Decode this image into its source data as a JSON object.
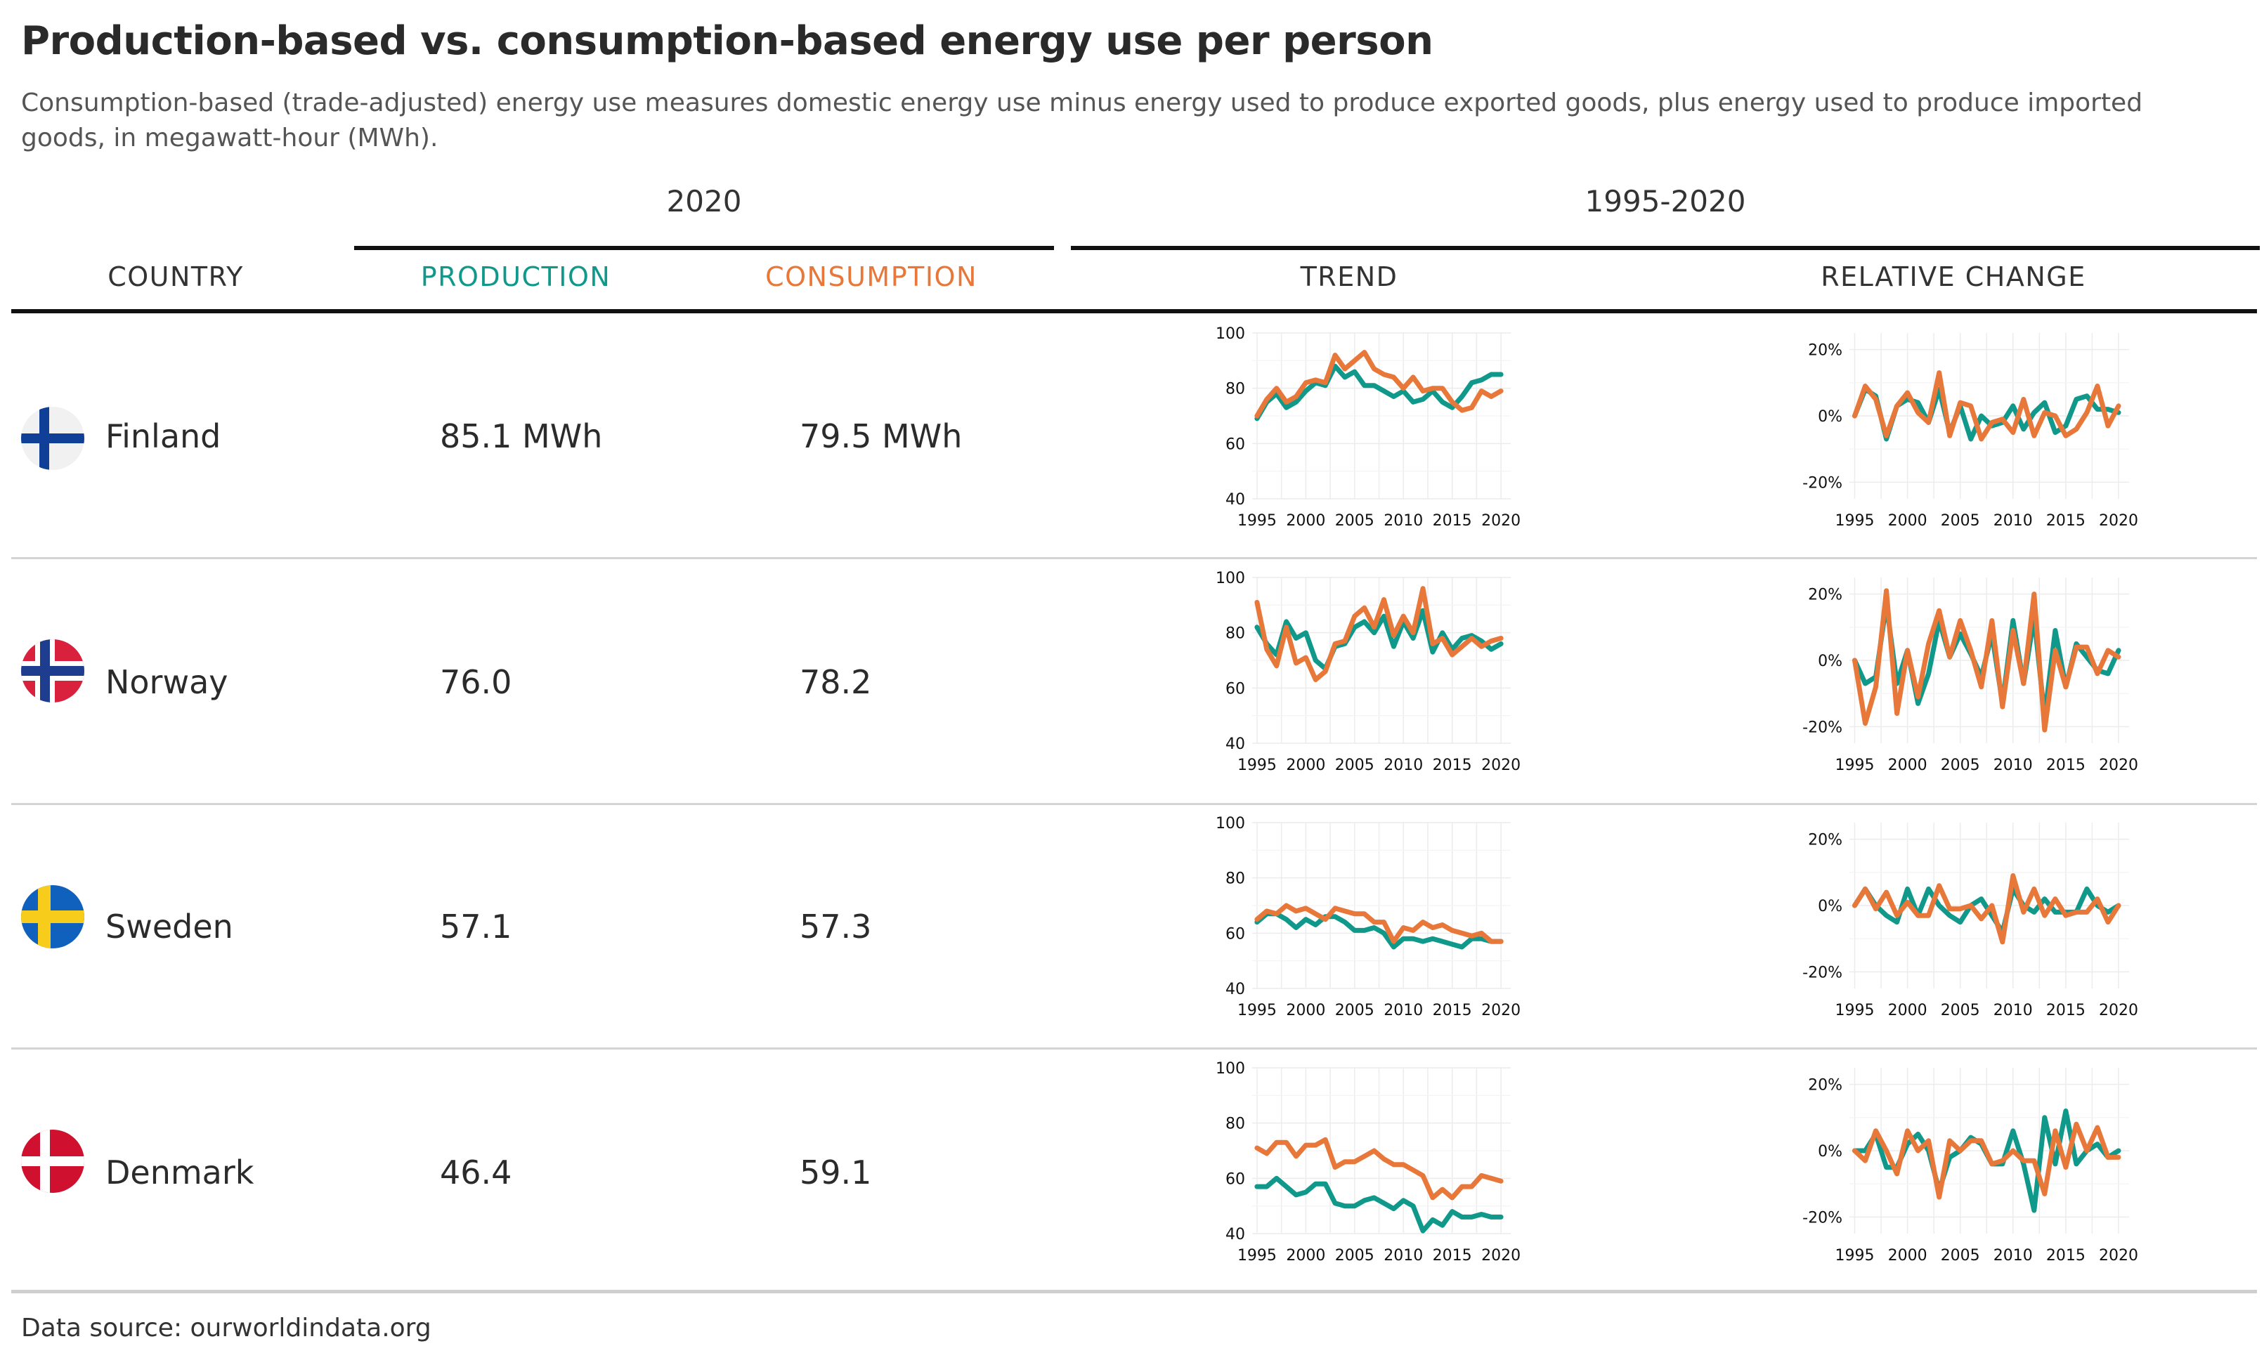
{
  "title": "Production-based vs. consumption-based energy use per person",
  "subtitle": "Consumption-based (trade-adjusted) energy use measures domestic energy use minus energy used to produce exported goods, plus energy used to produce imported goods, in megawatt-hour (MWh).",
  "spanners": {
    "left": "2020",
    "right": "1995-2020"
  },
  "columns": {
    "country": "COUNTRY",
    "production": "PRODUCTION",
    "consumption": "CONSUMPTION",
    "trend": "TREND",
    "relative_change": "RELATIVE CHANGE"
  },
  "colors": {
    "production": "#10998a",
    "consumption": "#e8773a",
    "rule": "#111111",
    "separator": "#d4d4d4"
  },
  "rows": [
    {
      "country": "Finland",
      "flag_icon": "finland-flag-icon",
      "production": "85.1 MWh",
      "consumption": "79.5 MWh"
    },
    {
      "country": "Norway",
      "flag_icon": "norway-flag-icon",
      "production": "76.0",
      "consumption": "78.2"
    },
    {
      "country": "Sweden",
      "flag_icon": "sweden-flag-icon",
      "production": "57.1",
      "consumption": "57.3"
    },
    {
      "country": "Denmark",
      "flag_icon": "denmark-flag-icon",
      "production": "46.4",
      "consumption": "59.1"
    }
  ],
  "source": "Data source: ourworldindata.org",
  "chart_data": {
    "type": "line",
    "x": [
      1995,
      1996,
      1997,
      1998,
      1999,
      2000,
      2001,
      2002,
      2003,
      2004,
      2005,
      2006,
      2007,
      2008,
      2009,
      2010,
      2011,
      2012,
      2013,
      2014,
      2015,
      2016,
      2017,
      2018,
      2019,
      2020
    ],
    "trend_axis": {
      "ylim": [
        40,
        100
      ],
      "yticks": [
        40,
        60,
        80,
        100
      ],
      "xticks": [
        1995,
        2000,
        2005,
        2010,
        2015,
        2020
      ],
      "xlim": [
        1994.5,
        2021
      ]
    },
    "change_axis": {
      "ylim": [
        -25,
        25
      ],
      "yticks": [
        -20,
        0,
        20
      ],
      "ytick_labels": [
        "-20%",
        "0%",
        "20%"
      ],
      "xticks": [
        1995,
        2000,
        2005,
        2010,
        2015,
        2020
      ],
      "xlim": [
        1994.5,
        2021
      ]
    },
    "countries": [
      {
        "country": "Finland",
        "trend": {
          "production": [
            69,
            75,
            78,
            73,
            75,
            79,
            82,
            81,
            88,
            84,
            86,
            81,
            81,
            79,
            77,
            79,
            75,
            76,
            79,
            75,
            73,
            77,
            82,
            83,
            85,
            85
          ],
          "consumption": [
            70,
            76,
            80,
            75,
            77,
            82,
            83,
            82,
            92,
            87,
            90,
            93,
            87,
            85,
            84,
            80,
            84,
            79,
            80,
            80,
            75,
            72,
            73,
            79,
            77,
            79
          ]
        },
        "relative_change": {
          "production": [
            0,
            8,
            6,
            -7,
            3,
            5,
            4,
            -2,
            8,
            -5,
            3,
            -7,
            0,
            -3,
            -2,
            3,
            -4,
            1,
            4,
            -5,
            -3,
            5,
            6,
            2,
            2,
            1
          ],
          "consumption": [
            0,
            9,
            5,
            -6,
            3,
            7,
            1,
            -2,
            13,
            -6,
            4,
            3,
            -7,
            -2,
            -1,
            -5,
            5,
            -6,
            1,
            0,
            -6,
            -4,
            1,
            9,
            -3,
            3
          ]
        }
      },
      {
        "country": "Norway",
        "trend": {
          "production": [
            82,
            76,
            72,
            84,
            78,
            80,
            70,
            67,
            75,
            76,
            82,
            84,
            80,
            86,
            75,
            84,
            78,
            88,
            73,
            80,
            74,
            78,
            79,
            77,
            74,
            76
          ],
          "consumption": [
            91,
            74,
            68,
            82,
            69,
            71,
            63,
            66,
            76,
            77,
            86,
            89,
            82,
            92,
            79,
            86,
            80,
            96,
            76,
            78,
            72,
            75,
            78,
            75,
            77,
            78
          ]
        },
        "relative_change": {
          "production": [
            0,
            -7,
            -5,
            17,
            -7,
            3,
            -13,
            -4,
            12,
            1,
            8,
            2,
            -5,
            8,
            -13,
            12,
            -7,
            13,
            -17,
            9,
            -8,
            5,
            1,
            -3,
            -4,
            3
          ],
          "consumption": [
            0,
            -19,
            -8,
            21,
            -16,
            3,
            -11,
            5,
            15,
            1,
            12,
            3,
            -8,
            12,
            -14,
            9,
            -7,
            20,
            -21,
            3,
            -8,
            4,
            4,
            -4,
            3,
            1
          ]
        }
      },
      {
        "country": "Sweden",
        "trend": {
          "production": [
            64,
            67,
            67,
            65,
            62,
            65,
            63,
            66,
            66,
            64,
            61,
            61,
            62,
            60,
            55,
            58,
            58,
            57,
            58,
            57,
            56,
            55,
            58,
            58,
            57,
            57
          ],
          "consumption": [
            65,
            68,
            67,
            70,
            68,
            69,
            67,
            65,
            69,
            68,
            67,
            67,
            64,
            64,
            57,
            62,
            61,
            64,
            62,
            63,
            61,
            60,
            59,
            60,
            57,
            57
          ]
        },
        "relative_change": {
          "production": [
            0,
            5,
            0,
            -3,
            -5,
            5,
            -3,
            5,
            0,
            -3,
            -5,
            0,
            2,
            -3,
            -8,
            5,
            0,
            -2,
            2,
            -2,
            -2,
            -2,
            5,
            0,
            -2,
            0
          ],
          "consumption": [
            0,
            5,
            -1,
            4,
            -3,
            1,
            -3,
            -3,
            6,
            -1,
            -1,
            0,
            -4,
            0,
            -11,
            9,
            -2,
            5,
            -3,
            2,
            -3,
            -2,
            -2,
            2,
            -5,
            0
          ]
        }
      },
      {
        "country": "Denmark",
        "trend": {
          "production": [
            57,
            57,
            60,
            57,
            54,
            55,
            58,
            58,
            51,
            50,
            50,
            52,
            53,
            51,
            49,
            52,
            50,
            41,
            45,
            43,
            48,
            46,
            46,
            47,
            46,
            46
          ],
          "consumption": [
            71,
            69,
            73,
            73,
            68,
            72,
            72,
            74,
            64,
            66,
            66,
            68,
            70,
            67,
            65,
            65,
            63,
            61,
            53,
            56,
            53,
            57,
            57,
            61,
            60,
            59
          ]
        },
        "relative_change": {
          "production": [
            0,
            0,
            5,
            -5,
            -5,
            2,
            5,
            0,
            -12,
            -2,
            0,
            4,
            2,
            -4,
            -4,
            6,
            -4,
            -18,
            10,
            -4,
            12,
            -4,
            0,
            2,
            -2,
            0
          ],
          "consumption": [
            0,
            -3,
            6,
            0,
            -7,
            6,
            0,
            3,
            -14,
            3,
            0,
            3,
            3,
            -4,
            -3,
            0,
            -3,
            -3,
            -13,
            6,
            -5,
            8,
            0,
            7,
            -2,
            -2
          ]
        }
      }
    ]
  }
}
